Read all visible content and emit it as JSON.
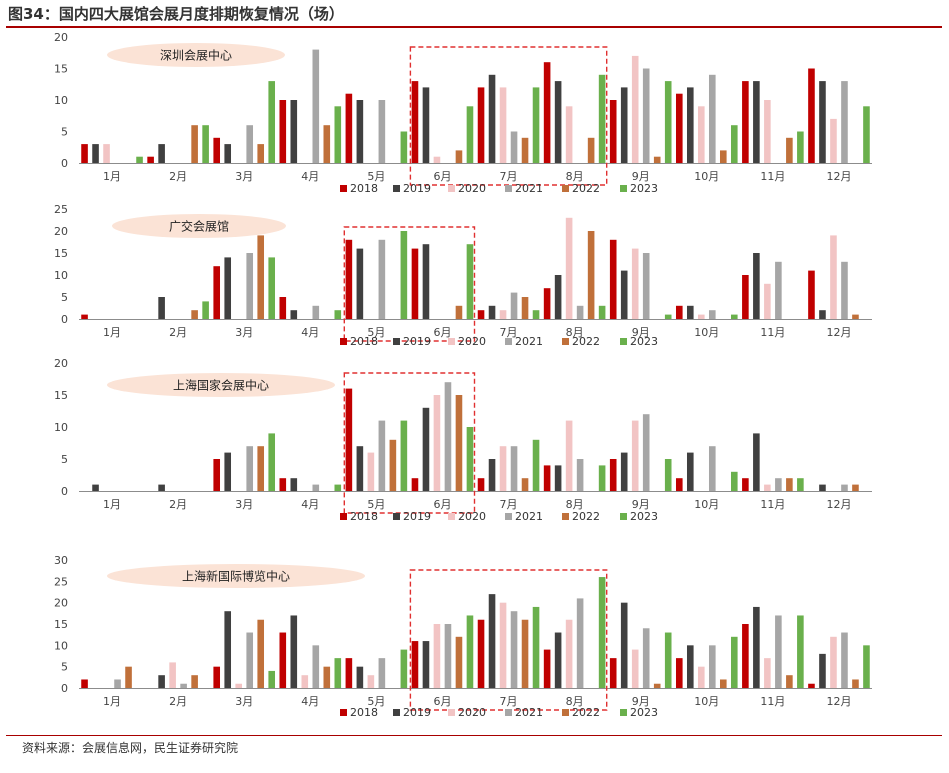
{
  "figure": {
    "title": "图34：国内四大展馆会展月度排期恢复情况（场）",
    "source": "资料来源：会展信息网，民生证券研究院"
  },
  "colors": {
    "2018": "#c00000",
    "2019": "#404040",
    "2020": "#f2c4c4",
    "2021": "#a6a6a6",
    "2022": "#c0703a",
    "2023": "#6ab04c",
    "highlight_box": "#e03030",
    "venue_label_bg": "#fbe3d6"
  },
  "chart_data": [
    {
      "type": "bar",
      "title": "深圳会展中心",
      "categories": [
        "1月",
        "2月",
        "3月",
        "4月",
        "5月",
        "6月",
        "7月",
        "8月",
        "9月",
        "10月",
        "11月",
        "12月"
      ],
      "ylim": [
        0,
        20
      ],
      "yticks": [
        0,
        5,
        10,
        15,
        20
      ],
      "highlight_months": [
        "6月",
        "7月",
        "8月"
      ],
      "legend_position": "bottom",
      "series": [
        {
          "name": "2018",
          "values": [
            3,
            1,
            4,
            10,
            11,
            13,
            12,
            16,
            10,
            11,
            13,
            15
          ]
        },
        {
          "name": "2019",
          "values": [
            3,
            3,
            3,
            10,
            10,
            12,
            14,
            13,
            12,
            12,
            13,
            13
          ]
        },
        {
          "name": "2020",
          "values": [
            3,
            0,
            0,
            0,
            0,
            1,
            12,
            9,
            17,
            9,
            10,
            7
          ]
        },
        {
          "name": "2021",
          "values": [
            0,
            0,
            6,
            18,
            10,
            0,
            5,
            0,
            15,
            14,
            0,
            13
          ]
        },
        {
          "name": "2022",
          "values": [
            0,
            6,
            3,
            6,
            0,
            2,
            4,
            4,
            1,
            2,
            4,
            0
          ]
        },
        {
          "name": "2023",
          "values": [
            1,
            6,
            13,
            9,
            5,
            9,
            12,
            14,
            13,
            6,
            5,
            9
          ]
        }
      ]
    },
    {
      "type": "bar",
      "title": "广交会展馆",
      "categories": [
        "1月",
        "2月",
        "3月",
        "4月",
        "5月",
        "6月",
        "7月",
        "8月",
        "9月",
        "10月",
        "11月",
        "12月"
      ],
      "ylim": [
        0,
        25
      ],
      "yticks": [
        0,
        5,
        10,
        15,
        20,
        25
      ],
      "highlight_months": [
        "5月",
        "6月"
      ],
      "legend_position": "bottom",
      "series": [
        {
          "name": "2018",
          "values": [
            1,
            0,
            12,
            5,
            18,
            16,
            2,
            7,
            18,
            3,
            10,
            11
          ]
        },
        {
          "name": "2019",
          "values": [
            0,
            5,
            14,
            2,
            16,
            17,
            3,
            10,
            11,
            3,
            15,
            2
          ]
        },
        {
          "name": "2020",
          "values": [
            0,
            0,
            0,
            0,
            0,
            0,
            2,
            23,
            16,
            1,
            8,
            19
          ]
        },
        {
          "name": "2021",
          "values": [
            0,
            0,
            15,
            3,
            18,
            0,
            6,
            3,
            15,
            2,
            13,
            13
          ]
        },
        {
          "name": "2022",
          "values": [
            0,
            2,
            19,
            0,
            0,
            3,
            5,
            20,
            0,
            0,
            0,
            1
          ]
        },
        {
          "name": "2023",
          "values": [
            0,
            4,
            14,
            2,
            20,
            17,
            2,
            3,
            1,
            1,
            0,
            0
          ]
        }
      ]
    },
    {
      "type": "bar",
      "title": "上海国家会展中心",
      "categories": [
        "1月",
        "2月",
        "3月",
        "4月",
        "5月",
        "6月",
        "7月",
        "8月",
        "9月",
        "10月",
        "11月",
        "12月"
      ],
      "ylim": [
        0,
        20
      ],
      "yticks": [
        0,
        5,
        10,
        15,
        20
      ],
      "highlight_months": [
        "5月",
        "6月"
      ],
      "legend_position": "bottom",
      "series": [
        {
          "name": "2018",
          "values": [
            0,
            0,
            5,
            2,
            16,
            2,
            2,
            4,
            5,
            2,
            2,
            0
          ]
        },
        {
          "name": "2019",
          "values": [
            1,
            1,
            6,
            2,
            7,
            13,
            5,
            4,
            6,
            6,
            9,
            1
          ]
        },
        {
          "name": "2020",
          "values": [
            0,
            0,
            0,
            0,
            6,
            15,
            7,
            11,
            11,
            0,
            1,
            0
          ]
        },
        {
          "name": "2021",
          "values": [
            0,
            0,
            7,
            1,
            11,
            17,
            7,
            5,
            12,
            7,
            2,
            1
          ]
        },
        {
          "name": "2022",
          "values": [
            0,
            0,
            7,
            0,
            8,
            15,
            2,
            0,
            0,
            0,
            2,
            1
          ]
        },
        {
          "name": "2023",
          "values": [
            0,
            0,
            9,
            1,
            11,
            10,
            8,
            4,
            5,
            3,
            2,
            0
          ]
        }
      ]
    },
    {
      "type": "bar",
      "title": "上海新国际博览中心",
      "categories": [
        "1月",
        "2月",
        "3月",
        "4月",
        "5月",
        "6月",
        "7月",
        "8月",
        "9月",
        "10月",
        "11月",
        "12月"
      ],
      "ylim": [
        0,
        30
      ],
      "yticks": [
        0,
        5,
        10,
        15,
        20,
        25,
        30
      ],
      "highlight_months": [
        "6月",
        "7月",
        "8月"
      ],
      "legend_position": "bottom",
      "series": [
        {
          "name": "2018",
          "values": [
            2,
            0,
            5,
            13,
            7,
            11,
            16,
            9,
            7,
            7,
            15,
            1
          ]
        },
        {
          "name": "2019",
          "values": [
            0,
            3,
            18,
            17,
            5,
            11,
            22,
            13,
            20,
            10,
            19,
            8
          ]
        },
        {
          "name": "2020",
          "values": [
            0,
            6,
            1,
            3,
            3,
            15,
            20,
            16,
            9,
            5,
            7,
            12
          ]
        },
        {
          "name": "2021",
          "values": [
            2,
            1,
            13,
            10,
            7,
            15,
            18,
            21,
            14,
            10,
            17,
            13
          ]
        },
        {
          "name": "2022",
          "values": [
            5,
            3,
            16,
            5,
            0,
            12,
            16,
            0,
            1,
            2,
            3,
            2
          ]
        },
        {
          "name": "2023",
          "values": [
            0,
            0,
            4,
            7,
            9,
            17,
            19,
            26,
            13,
            12,
            17,
            10
          ]
        }
      ]
    }
  ]
}
